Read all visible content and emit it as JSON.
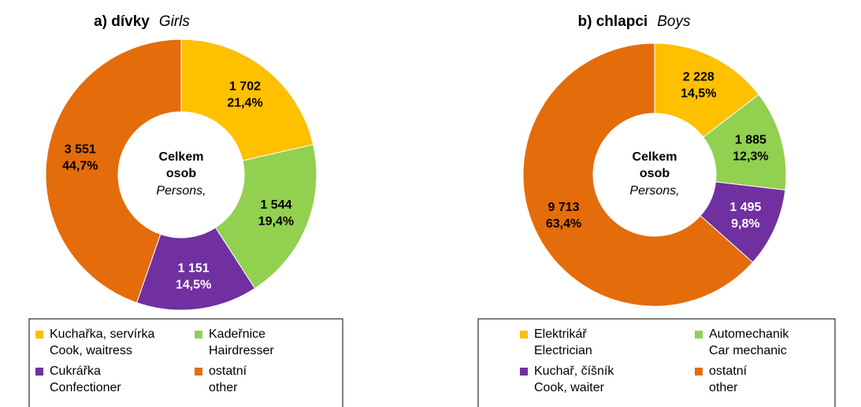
{
  "chart_data": [
    {
      "type": "donut",
      "title": "a) dívky",
      "subtitle": "Girls",
      "center_label": "Celkem osob",
      "center_sublabel": "Persons,",
      "categories": [
        "Kuchařka, servírka",
        "Kadeřnice",
        "Cukrářka",
        "ostatní"
      ],
      "categories_en": [
        "Cook, waitress",
        "Hairdresser",
        "Confectioner",
        "other"
      ],
      "values": [
        1702,
        1544,
        1151,
        3551
      ],
      "value_labels": [
        "1 702",
        "1 544",
        "1 151",
        "3 551"
      ],
      "percents": [
        21.4,
        19.4,
        14.5,
        44.7
      ],
      "percent_labels": [
        "21,4%",
        "19,4%",
        "14,5%",
        "44,7%"
      ],
      "colors": [
        "#ffc000",
        "#92d050",
        "#7030a0",
        "#e46c0a"
      ]
    },
    {
      "type": "donut",
      "title": "b) chlapci",
      "subtitle": "Boys",
      "center_label": "Celkem osob",
      "center_sublabel": "Persons,",
      "categories": [
        "Elektrikář",
        "Automechanik",
        "Kuchař, číšník",
        "ostatní"
      ],
      "categories_en": [
        "Electrician",
        "Car mechanic",
        "Cook, waiter",
        "other"
      ],
      "values": [
        2228,
        1885,
        1495,
        9713
      ],
      "value_labels": [
        "2 228",
        "1 885",
        "1 495",
        "9 713"
      ],
      "percents": [
        14.5,
        12.3,
        9.8,
        63.4
      ],
      "percent_labels": [
        "14,5%",
        "12,3%",
        "9,8%",
        "63,4%"
      ],
      "colors": [
        "#ffc000",
        "#92d050",
        "#7030a0",
        "#e46c0a"
      ]
    }
  ]
}
